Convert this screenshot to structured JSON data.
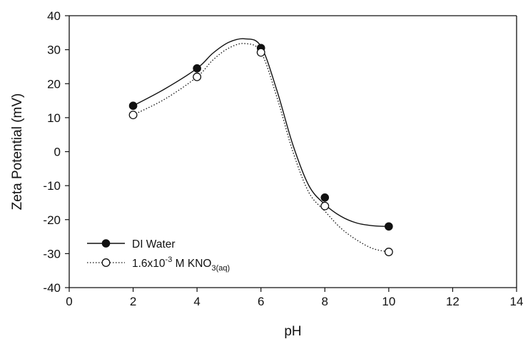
{
  "chart_data": {
    "type": "scatter",
    "xlabel": "pH",
    "ylabel": "Zeta Potential (mV)",
    "xlim": [
      0,
      14
    ],
    "ylim": [
      -40,
      40
    ],
    "xticks": [
      0,
      2,
      4,
      6,
      8,
      10,
      12,
      14
    ],
    "yticks": [
      -40,
      -30,
      -20,
      -10,
      0,
      10,
      20,
      30,
      40
    ],
    "grid": false,
    "legend_position": "bottom-left",
    "series": [
      {
        "name": "DI Water",
        "marker": "filled-circle",
        "line": "solid",
        "x": [
          2,
          4,
          6,
          8,
          10
        ],
        "y": [
          13.5,
          24.5,
          30.5,
          -13.5,
          -22
        ],
        "curve": [
          [
            2,
            13.5
          ],
          [
            3,
            18.5
          ],
          [
            4,
            24.5
          ],
          [
            4.5,
            29
          ],
          [
            5,
            32.2
          ],
          [
            5.5,
            33.2
          ],
          [
            6,
            31
          ],
          [
            6.5,
            18
          ],
          [
            7,
            2
          ],
          [
            7.5,
            -10
          ],
          [
            8,
            -15.5
          ],
          [
            8.5,
            -19
          ],
          [
            9,
            -21
          ],
          [
            9.5,
            -21.8
          ],
          [
            10,
            -22
          ]
        ]
      },
      {
        "name": "1.6x10-3 M KNO3(aq)",
        "marker": "open-circle",
        "line": "dotted",
        "x": [
          2,
          4,
          6,
          8,
          10
        ],
        "y": [
          10.8,
          22,
          29.2,
          -16,
          -29.5
        ],
        "curve": [
          [
            2,
            10.8
          ],
          [
            3,
            15.5
          ],
          [
            4,
            22
          ],
          [
            4.5,
            27
          ],
          [
            5,
            30.5
          ],
          [
            5.5,
            31.8
          ],
          [
            6,
            29.3
          ],
          [
            6.5,
            16
          ],
          [
            7,
            0
          ],
          [
            7.5,
            -12
          ],
          [
            8,
            -17.5
          ],
          [
            8.5,
            -22.5
          ],
          [
            9,
            -26
          ],
          [
            9.5,
            -28.5
          ],
          [
            10,
            -29.5
          ]
        ]
      }
    ],
    "legend": [
      {
        "label": "DI Water",
        "marker": "filled-circle",
        "line": "solid"
      },
      {
        "label_main": "1.6x10",
        "label_sup": "-3",
        "label_mid": " M KNO",
        "label_sub": "3(aq)",
        "marker": "open-circle",
        "line": "dotted"
      }
    ]
  },
  "colors": {
    "line": "#111111",
    "marker_fill_solid": "#111111",
    "marker_fill_open": "#ffffff",
    "background": "#ffffff"
  }
}
